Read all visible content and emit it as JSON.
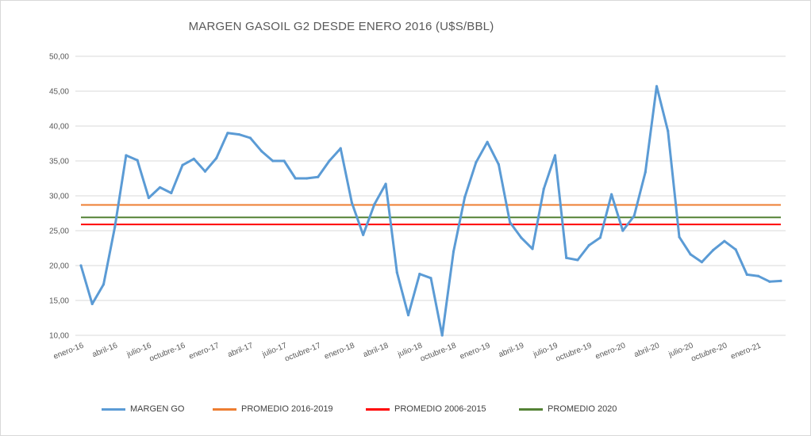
{
  "chart_data": {
    "type": "line",
    "title": "MARGEN GASOIL G2 DESDE ENERO 2016 (U$S/BBL)",
    "ylim": [
      10,
      50
    ],
    "yticks": [
      "10,00",
      "15,00",
      "20,00",
      "25,00",
      "30,00",
      "35,00",
      "40,00",
      "45,00",
      "50,00"
    ],
    "ytick_values": [
      10,
      15,
      20,
      25,
      30,
      35,
      40,
      45,
      50
    ],
    "x_labels": [
      "enero-16",
      "abril-16",
      "julio-16",
      "octubre-16",
      "enero-17",
      "abril-17",
      "julio-17",
      "octubre-17",
      "enero-18",
      "abril-18",
      "julio-18",
      "octubre-18",
      "enero-19",
      "abril-19",
      "julio-19",
      "octubre-19",
      "enero-20",
      "abril-20",
      "julio-20",
      "octubre-20",
      "enero-21"
    ],
    "x_label_index": [
      0,
      3,
      6,
      9,
      12,
      15,
      18,
      21,
      24,
      27,
      30,
      33,
      36,
      39,
      42,
      45,
      48,
      51,
      54,
      57,
      60
    ],
    "grid": true,
    "legend_position": "bottom",
    "series": [
      {
        "name": "MARGEN GO",
        "color": "#5b9bd5",
        "values": [
          20.0,
          14.5,
          17.3,
          25.5,
          35.8,
          35.1,
          29.7,
          31.2,
          30.4,
          34.4,
          35.3,
          33.5,
          35.4,
          39.0,
          38.8,
          38.3,
          36.4,
          35.0,
          35.0,
          32.5,
          32.5,
          32.7,
          35.0,
          36.8,
          29.0,
          24.4,
          28.8,
          31.7,
          19.0,
          12.9,
          18.8,
          18.2,
          9.8,
          22.0,
          29.8,
          34.8,
          37.7,
          34.5,
          26.2,
          24.0,
          22.4,
          31.0,
          35.8,
          21.1,
          20.8,
          22.9,
          24.0,
          30.2,
          25.0,
          27.1,
          33.4,
          45.7,
          39.3,
          24.1,
          21.6,
          20.5,
          22.2,
          23.5,
          22.3,
          18.7,
          18.5,
          17.7,
          17.8
        ]
      },
      {
        "name": "PROMEDIO 2016-2019",
        "color": "#ed7d31",
        "constant": 28.7
      },
      {
        "name": "PROMEDIO 2006-2015",
        "color": "#ff0000",
        "constant": 25.9
      },
      {
        "name": "PROMEDIO 2020",
        "color": "#548235",
        "constant": 26.9
      }
    ]
  }
}
